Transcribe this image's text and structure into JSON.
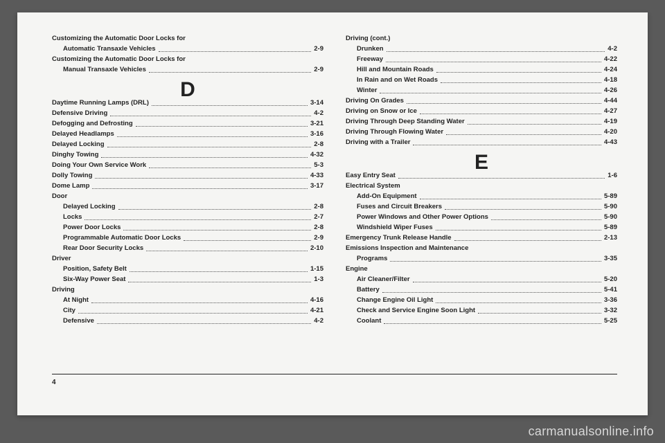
{
  "pageNumber": "4",
  "watermark": "carmanualsonline.info",
  "left": [
    {
      "t": "plain",
      "text": "Customizing the Automatic Door Locks for"
    },
    {
      "t": "row",
      "indent": true,
      "label": "Automatic Transaxle Vehicles",
      "page": "2-9"
    },
    {
      "t": "plain",
      "text": "Customizing the Automatic Door Locks for"
    },
    {
      "t": "row",
      "indent": true,
      "label": "Manual Transaxle Vehicles",
      "page": "2-9"
    },
    {
      "t": "letter",
      "text": "D"
    },
    {
      "t": "row",
      "label": "Daytime Running Lamps (DRL)",
      "page": "3-14"
    },
    {
      "t": "row",
      "label": "Defensive Driving",
      "page": "4-2"
    },
    {
      "t": "row",
      "label": "Defogging and Defrosting",
      "page": "3-21"
    },
    {
      "t": "row",
      "label": "Delayed Headlamps",
      "page": "3-16"
    },
    {
      "t": "row",
      "label": "Delayed Locking",
      "page": "2-8"
    },
    {
      "t": "row",
      "label": "Dinghy Towing",
      "page": "4-32"
    },
    {
      "t": "row",
      "label": "Doing Your Own Service Work",
      "page": "5-3"
    },
    {
      "t": "row",
      "label": "Dolly Towing",
      "page": "4-33"
    },
    {
      "t": "row",
      "label": "Dome Lamp",
      "page": "3-17"
    },
    {
      "t": "plain",
      "text": "Door"
    },
    {
      "t": "row",
      "indent": true,
      "label": "Delayed Locking",
      "page": "2-8"
    },
    {
      "t": "row",
      "indent": true,
      "label": "Locks",
      "page": "2-7"
    },
    {
      "t": "row",
      "indent": true,
      "label": "Power Door Locks",
      "page": "2-8"
    },
    {
      "t": "row",
      "indent": true,
      "label": "Programmable Automatic Door Locks",
      "page": "2-9"
    },
    {
      "t": "row",
      "indent": true,
      "label": "Rear Door Security Locks",
      "page": "2-10"
    },
    {
      "t": "plain",
      "text": "Driver"
    },
    {
      "t": "row",
      "indent": true,
      "label": "Position, Safety Belt",
      "page": "1-15"
    },
    {
      "t": "row",
      "indent": true,
      "label": "Six-Way Power Seat",
      "page": "1-3"
    },
    {
      "t": "plain",
      "text": "Driving"
    },
    {
      "t": "row",
      "indent": true,
      "label": "At Night",
      "page": "4-16"
    },
    {
      "t": "row",
      "indent": true,
      "label": "City",
      "page": "4-21"
    },
    {
      "t": "row",
      "indent": true,
      "label": "Defensive",
      "page": "4-2"
    }
  ],
  "right": [
    {
      "t": "plain",
      "text": "Driving (cont.)"
    },
    {
      "t": "row",
      "indent": true,
      "label": "Drunken",
      "page": "4-2"
    },
    {
      "t": "row",
      "indent": true,
      "label": "Freeway",
      "page": "4-22"
    },
    {
      "t": "row",
      "indent": true,
      "label": "Hill and Mountain Roads",
      "page": "4-24"
    },
    {
      "t": "row",
      "indent": true,
      "label": "In Rain and on Wet Roads",
      "page": "4-18"
    },
    {
      "t": "row",
      "indent": true,
      "label": "Winter",
      "page": "4-26"
    },
    {
      "t": "row",
      "label": "Driving On Grades",
      "page": "4-44"
    },
    {
      "t": "row",
      "label": "Driving on Snow or Ice",
      "page": "4-27"
    },
    {
      "t": "row",
      "label": "Driving Through Deep Standing Water",
      "page": "4-19"
    },
    {
      "t": "row",
      "label": "Driving Through Flowing Water",
      "page": "4-20"
    },
    {
      "t": "row",
      "label": "Driving with a Trailer",
      "page": "4-43"
    },
    {
      "t": "letter",
      "text": "E"
    },
    {
      "t": "row",
      "label": "Easy Entry Seat",
      "page": "1-6"
    },
    {
      "t": "plain",
      "text": "Electrical System"
    },
    {
      "t": "row",
      "indent": true,
      "label": "Add-On Equipment",
      "page": "5-89"
    },
    {
      "t": "row",
      "indent": true,
      "label": "Fuses and Circuit Breakers",
      "page": "5-90"
    },
    {
      "t": "row",
      "indent": true,
      "label": "Power Windows and Other Power Options",
      "page": "5-90"
    },
    {
      "t": "row",
      "indent": true,
      "label": "Windshield Wiper Fuses",
      "page": "5-89"
    },
    {
      "t": "row",
      "label": "Emergency Trunk Release Handle",
      "page": "2-13"
    },
    {
      "t": "plain",
      "text": "Emissions Inspection and Maintenance"
    },
    {
      "t": "row",
      "indent": true,
      "label": "Programs",
      "page": "3-35"
    },
    {
      "t": "plain",
      "text": "Engine"
    },
    {
      "t": "row",
      "indent": true,
      "label": "Air Cleaner/Filter",
      "page": "5-20"
    },
    {
      "t": "row",
      "indent": true,
      "label": "Battery",
      "page": "5-41"
    },
    {
      "t": "row",
      "indent": true,
      "label": "Change Engine Oil Light",
      "page": "3-36"
    },
    {
      "t": "row",
      "indent": true,
      "label": "Check and Service Engine Soon Light",
      "page": "3-32"
    },
    {
      "t": "row",
      "indent": true,
      "label": "Coolant",
      "page": "5-25"
    }
  ]
}
